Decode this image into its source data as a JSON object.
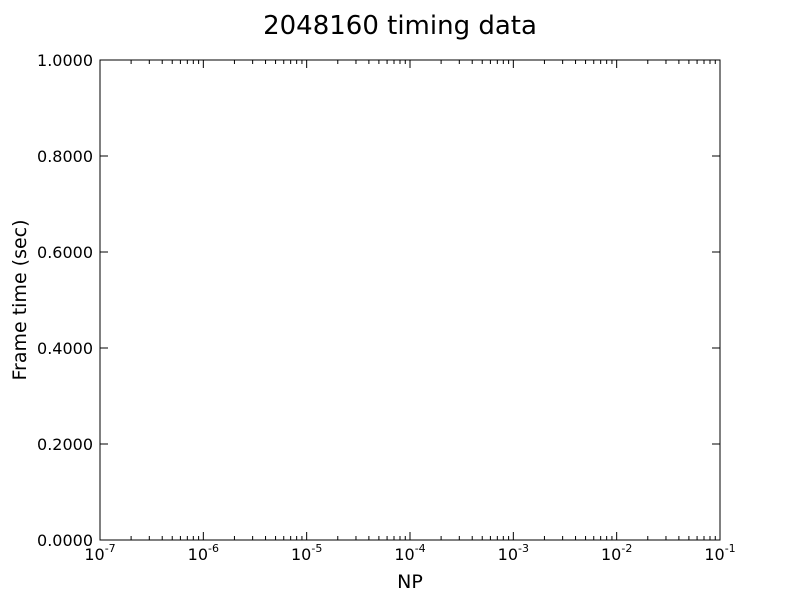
{
  "chart_data": {
    "type": "line",
    "title": "2048160 timing data",
    "xlabel": "NP",
    "ylabel": "Frame time (sec)",
    "xscale": "log",
    "xlim": [
      1e-07,
      0.1
    ],
    "ylim": [
      0,
      1
    ],
    "x_ticks": [
      {
        "base": "10",
        "exp": "-7"
      },
      {
        "base": "10",
        "exp": "-6"
      },
      {
        "base": "10",
        "exp": "-5"
      },
      {
        "base": "10",
        "exp": "-4"
      },
      {
        "base": "10",
        "exp": "-3"
      },
      {
        "base": "10",
        "exp": "-2"
      },
      {
        "base": "10",
        "exp": "-1"
      }
    ],
    "y_ticks": [
      "1.0000",
      "0.8000",
      "0.6000",
      "0.4000",
      "0.2000",
      "0.0000"
    ],
    "grid": false,
    "series": []
  }
}
